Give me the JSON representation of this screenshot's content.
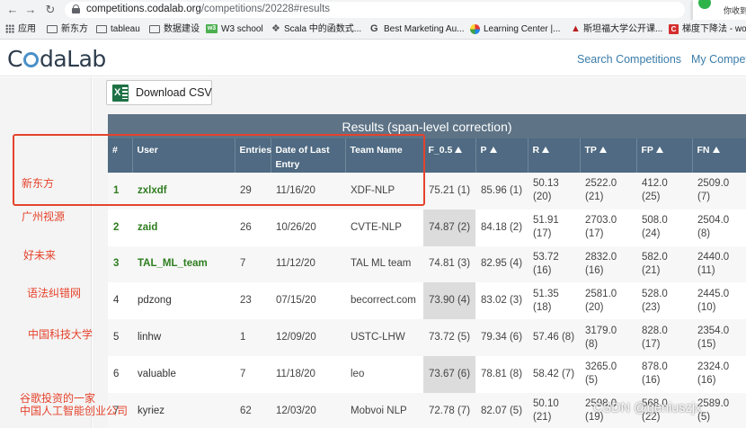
{
  "browser": {
    "url_host": "competitions.codalab.org",
    "url_path": "/competitions/20228#results",
    "ext_popup_text": "你收到"
  },
  "bookmarks": [
    {
      "label": "应用",
      "icon": "apps-icon"
    },
    {
      "label": "新东方",
      "icon": "folder-icon"
    },
    {
      "label": "tableau",
      "icon": "folder-icon"
    },
    {
      "label": "数据建设",
      "icon": "folder-icon"
    },
    {
      "label": "W3 school",
      "icon": "w3-icon",
      "icon_text": "w3"
    },
    {
      "label": "Scala 中的函数式...",
      "icon": "scala-icon"
    },
    {
      "label": "Best Marketing Au...",
      "icon": "g-icon"
    },
    {
      "label": "Learning Center |...",
      "icon": "learning-center-icon"
    },
    {
      "label": "斯坦福大学公开课...",
      "icon": "stanford-icon"
    },
    {
      "label": "梯度下降法 - wox",
      "icon": "c-icon",
      "icon_text": "C"
    }
  ],
  "site": {
    "logo_c": "C",
    "logo_rest": "daLab",
    "nav_search": "Search Competitions",
    "nav_my": "My Compet"
  },
  "download_csv": "Download CSV",
  "results_title": "Results (span-level correction)",
  "columns": [
    "#",
    "User",
    "Entries",
    "Date of Last Entry",
    "Team Name",
    "F_0.5",
    "P",
    "R",
    "TP",
    "FP",
    "FN"
  ],
  "rows": [
    {
      "rank": "1",
      "user": "zxlxdf",
      "entries": "29",
      "date": "11/16/20",
      "team": "XDF-NLP",
      "f05": "75.21 (1)",
      "p": "85.96 (1)",
      "r1": "50.13",
      "r2": "(20)",
      "tp1": "2522.0",
      "tp2": "(21)",
      "fp1": "412.0",
      "fp2": "(25)",
      "fn1": "2509.0",
      "fn2": "(7)"
    },
    {
      "rank": "2",
      "user": "zaid",
      "entries": "26",
      "date": "10/26/20",
      "team": "CVTE-NLP",
      "f05": "74.87 (2)",
      "p": "84.18 (2)",
      "r1": "51.91",
      "r2": "(17)",
      "tp1": "2703.0",
      "tp2": "(17)",
      "fp1": "508.0",
      "fp2": "(24)",
      "fn1": "2504.0",
      "fn2": "(8)"
    },
    {
      "rank": "3",
      "user": "TAL_ML_team",
      "entries": "7",
      "date": "11/12/20",
      "team": "TAL ML team",
      "f05": "74.81 (3)",
      "p": "82.95 (4)",
      "r1": "53.72",
      "r2": "(16)",
      "tp1": "2832.0",
      "tp2": "(16)",
      "fp1": "582.0",
      "fp2": "(21)",
      "fn1": "2440.0",
      "fn2": "(11)"
    },
    {
      "rank": "4",
      "user": "pdzong",
      "entries": "23",
      "date": "07/15/20",
      "team": "becorrect.com",
      "f05": "73.90 (4)",
      "p": "83.02 (3)",
      "r1": "51.35",
      "r2": "(18)",
      "tp1": "2581.0",
      "tp2": "(20)",
      "fp1": "528.0",
      "fp2": "(23)",
      "fn1": "2445.0",
      "fn2": "(10)"
    },
    {
      "rank": "5",
      "user": "linhw",
      "entries": "1",
      "date": "12/09/20",
      "team": "USTC-LHW",
      "f05": "73.72 (5)",
      "p": "79.34 (6)",
      "r1": "57.46 (8)",
      "r2": "",
      "tp1": "3179.0",
      "tp2": "(8)",
      "fp1": "828.0",
      "fp2": "(17)",
      "fn1": "2354.0",
      "fn2": "(15)"
    },
    {
      "rank": "6",
      "user": "valuable",
      "entries": "7",
      "date": "11/18/20",
      "team": "leo",
      "f05": "73.67 (6)",
      "p": "78.81 (8)",
      "r1": "58.42 (7)",
      "r2": "",
      "tp1": "3265.0",
      "tp2": "(5)",
      "fp1": "878.0",
      "fp2": "(16)",
      "fn1": "2324.0",
      "fn2": "(16)"
    },
    {
      "rank": "7",
      "user": "kyriez",
      "entries": "62",
      "date": "12/03/20",
      "team": "Mobvoi NLP",
      "f05": "72.78 (7)",
      "p": "82.07 (5)",
      "r1": "50.10",
      "r2": "(21)",
      "tp1": "2598.0",
      "tp2": "(19)",
      "fp1": "568.0",
      "fp2": "(22)",
      "fn1": "2589.0",
      "fn2": "(5)"
    }
  ],
  "annotations": {
    "a1": "新东方",
    "a2": "广州视源",
    "a3": "好未来",
    "a4": "语法纠错网",
    "a5": "中国科技大学",
    "a6_line1": "谷歌投资的一家",
    "a6_line2": "中国人工智能创业公司"
  },
  "watermark": "CSDN @geniuszjx",
  "colors": {
    "table_header": "#4f6a82",
    "title_bar": "#5e7386",
    "annotation_red": "#e5432c",
    "user_green": "#2e7d1f"
  }
}
